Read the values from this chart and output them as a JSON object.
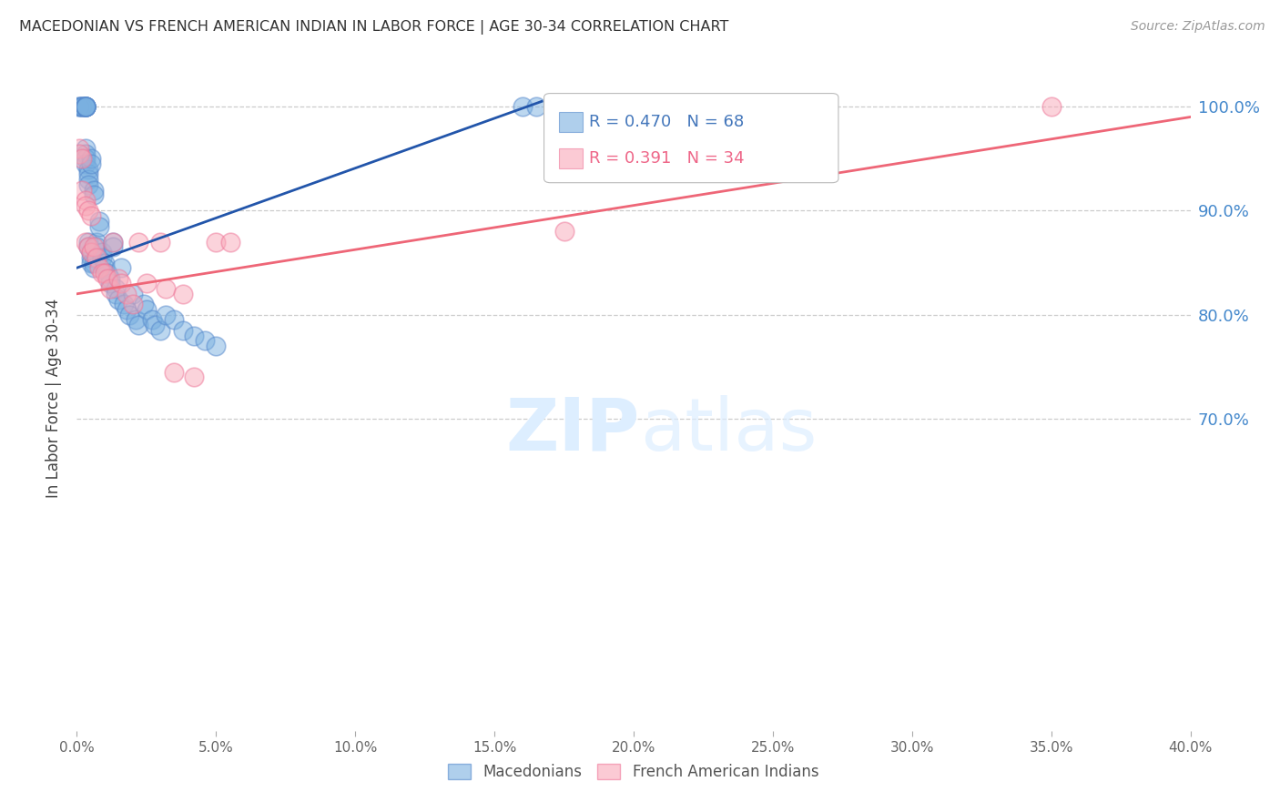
{
  "title": "MACEDONIAN VS FRENCH AMERICAN INDIAN IN LABOR FORCE | AGE 30-34 CORRELATION CHART",
  "source": "Source: ZipAtlas.com",
  "ylabel_left": "In Labor Force | Age 30-34",
  "x_min": 0.0,
  "x_max": 0.4,
  "y_min": 0.4,
  "y_max": 1.04,
  "y_ticks": [
    0.7,
    0.8,
    0.9,
    1.0
  ],
  "x_ticks": [
    0.0,
    0.05,
    0.1,
    0.15,
    0.2,
    0.25,
    0.3,
    0.35,
    0.4
  ],
  "grid_color": "#cccccc",
  "blue_color": "#7ab0e0",
  "pink_color": "#f9a8b8",
  "blue_edge_color": "#5588cc",
  "pink_edge_color": "#ee7799",
  "blue_line_color": "#2255aa",
  "pink_line_color": "#ee6677",
  "legend_blue_r": "R = 0.470",
  "legend_blue_n": "N = 68",
  "legend_pink_r": "R = 0.391",
  "legend_pink_n": "N = 34",
  "watermark_zip": "ZIP",
  "watermark_atlas": "atlas",
  "legend_label_blue": "Macedonians",
  "legend_label_pink": "French American Indians",
  "blue_x": [
    0.001,
    0.001,
    0.002,
    0.002,
    0.002,
    0.003,
    0.003,
    0.003,
    0.003,
    0.003,
    0.003,
    0.003,
    0.003,
    0.003,
    0.003,
    0.003,
    0.003,
    0.004,
    0.004,
    0.004,
    0.004,
    0.004,
    0.004,
    0.005,
    0.005,
    0.005,
    0.005,
    0.005,
    0.006,
    0.006,
    0.006,
    0.006,
    0.007,
    0.007,
    0.008,
    0.008,
    0.009,
    0.009,
    0.01,
    0.01,
    0.011,
    0.012,
    0.012,
    0.013,
    0.013,
    0.014,
    0.014,
    0.015,
    0.016,
    0.017,
    0.018,
    0.019,
    0.02,
    0.021,
    0.022,
    0.024,
    0.025,
    0.027,
    0.028,
    0.03,
    0.032,
    0.035,
    0.038,
    0.042,
    0.046,
    0.05,
    0.16,
    0.165
  ],
  "blue_y": [
    1.0,
    1.0,
    1.0,
    1.0,
    1.0,
    1.0,
    1.0,
    1.0,
    1.0,
    1.0,
    1.0,
    1.0,
    1.0,
    0.96,
    0.955,
    0.95,
    0.945,
    0.94,
    0.935,
    0.93,
    0.925,
    0.87,
    0.865,
    0.95,
    0.945,
    0.86,
    0.855,
    0.85,
    0.92,
    0.915,
    0.85,
    0.845,
    0.87,
    0.865,
    0.89,
    0.885,
    0.86,
    0.855,
    0.85,
    0.845,
    0.84,
    0.835,
    0.83,
    0.87,
    0.865,
    0.825,
    0.82,
    0.815,
    0.845,
    0.81,
    0.805,
    0.8,
    0.82,
    0.795,
    0.79,
    0.81,
    0.805,
    0.795,
    0.79,
    0.785,
    0.8,
    0.795,
    0.785,
    0.78,
    0.775,
    0.77,
    1.0,
    1.0
  ],
  "pink_x": [
    0.001,
    0.001,
    0.002,
    0.002,
    0.003,
    0.003,
    0.003,
    0.004,
    0.004,
    0.005,
    0.005,
    0.006,
    0.007,
    0.008,
    0.009,
    0.01,
    0.011,
    0.012,
    0.013,
    0.015,
    0.016,
    0.018,
    0.02,
    0.022,
    0.025,
    0.03,
    0.032,
    0.035,
    0.038,
    0.042,
    0.05,
    0.055,
    0.175,
    0.35
  ],
  "pink_y": [
    0.96,
    0.955,
    0.95,
    0.92,
    0.91,
    0.905,
    0.87,
    0.9,
    0.865,
    0.895,
    0.86,
    0.865,
    0.855,
    0.845,
    0.84,
    0.84,
    0.835,
    0.825,
    0.87,
    0.835,
    0.83,
    0.82,
    0.81,
    0.87,
    0.83,
    0.87,
    0.825,
    0.745,
    0.82,
    0.74,
    0.87,
    0.87,
    0.88,
    1.0
  ],
  "blue_line_x": [
    0.0,
    0.167
  ],
  "blue_line_y": [
    0.845,
    1.005
  ],
  "pink_line_x": [
    0.0,
    0.4
  ],
  "pink_line_y": [
    0.82,
    0.99
  ]
}
